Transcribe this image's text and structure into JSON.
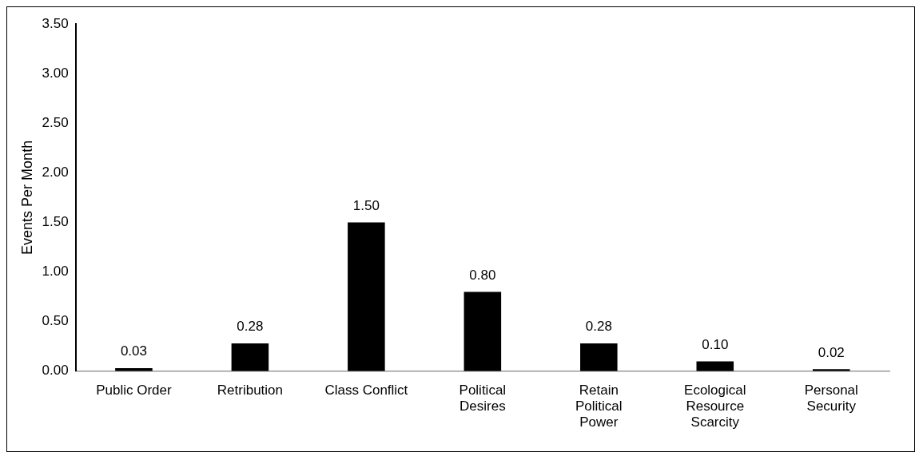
{
  "chart_data": {
    "type": "bar",
    "ylabel": "Events Per Month",
    "categories": [
      "Public Order",
      "Retribution",
      "Class Conflict",
      "Political Desires",
      "Retain Political Power",
      "Ecological Resource Scarcity",
      "Personal Security"
    ],
    "values": [
      0.03,
      0.28,
      1.5,
      0.8,
      0.28,
      0.1,
      0.02
    ],
    "value_labels": [
      "0.03",
      "0.28",
      "1.50",
      "0.80",
      "0.28",
      "0.10",
      "0.02"
    ],
    "color": "#000000",
    "ylim": [
      0,
      3.5
    ],
    "yticks": [
      {
        "value": 0,
        "label": "0.00"
      },
      {
        "value": 0.5,
        "label": "0.50"
      },
      {
        "value": 1,
        "label": "1.00"
      },
      {
        "value": 1.5,
        "label": "1.50"
      },
      {
        "value": 2,
        "label": "2.00"
      },
      {
        "value": 2.5,
        "label": "2.50"
      },
      {
        "value": 3,
        "label": "3.00"
      },
      {
        "value": 3.5,
        "label": "3.50"
      }
    ],
    "grid": false,
    "legend": false
  }
}
